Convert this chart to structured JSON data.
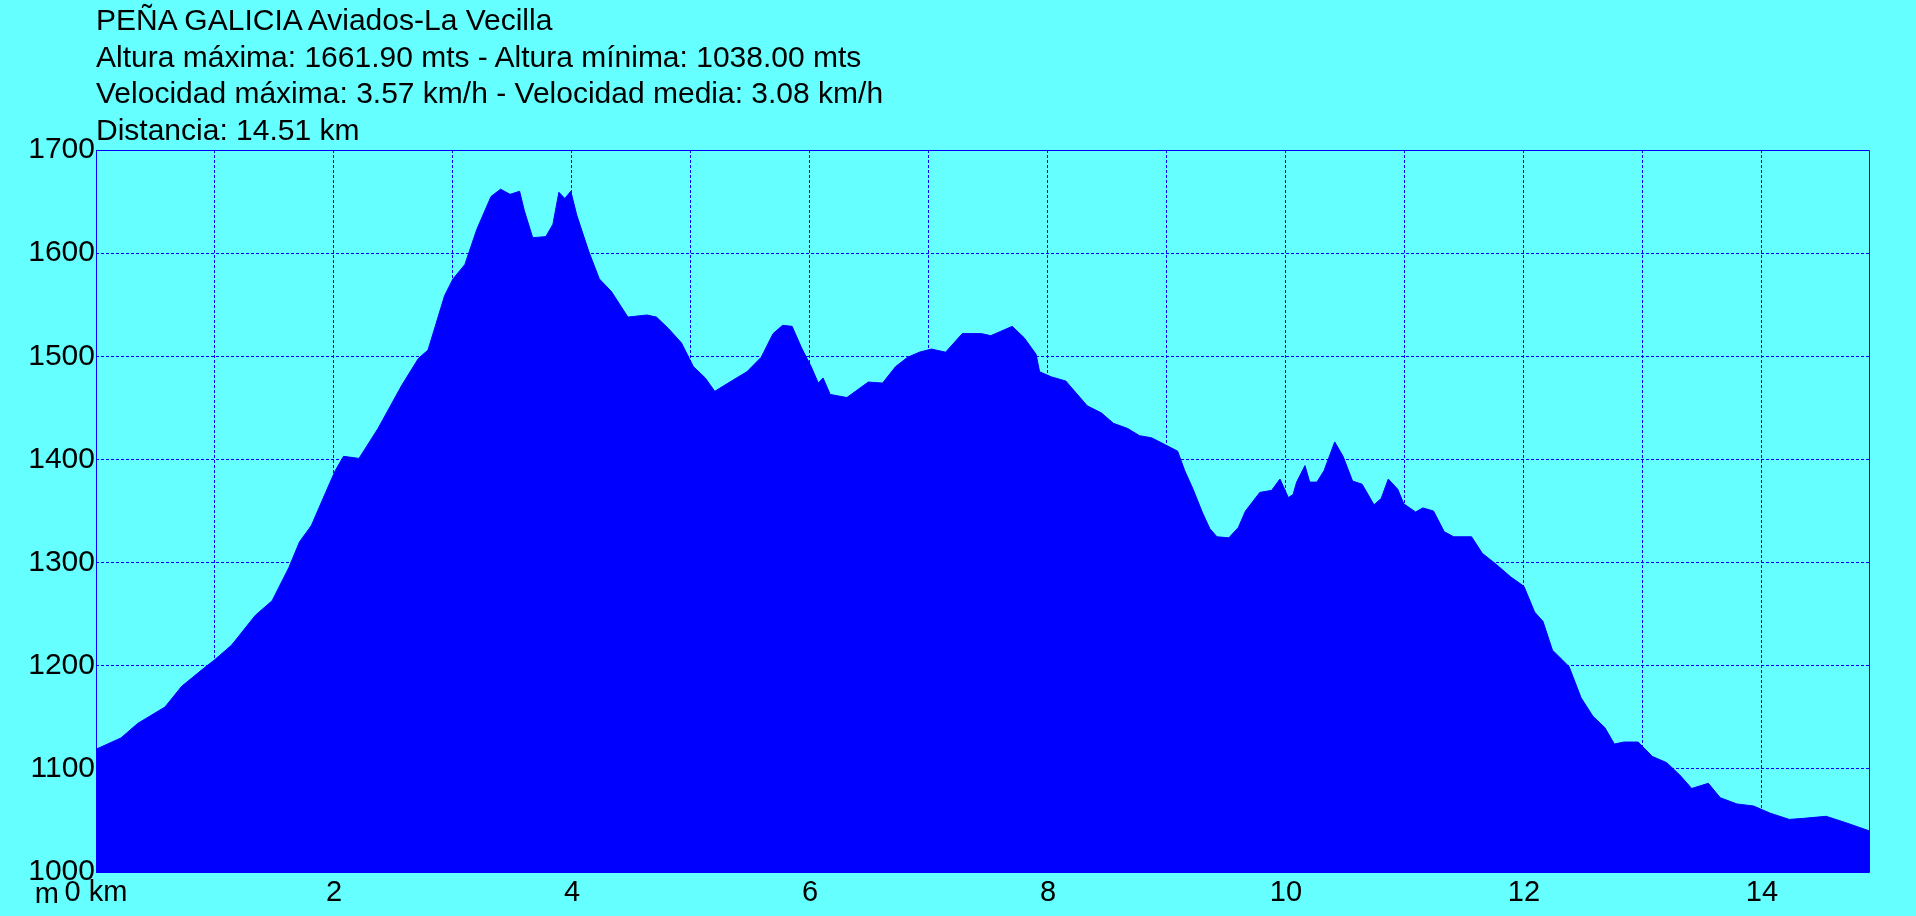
{
  "chart_data": {
    "type": "area",
    "title": "PEÑA GALICIA Aviados-La Vecilla",
    "annotations": [
      "Altura máxima: 1661.90 mts - Altura mínima: 1038.00 mts",
      "Velocidad máxima: 3.57 km/h - Velocidad media: 3.08 km/h",
      "Distancia: 14.51 km"
    ],
    "ylabel": "m",
    "color": "#0000ff",
    "x": [
      0,
      0.21,
      0.35,
      0.58,
      0.72,
      0.9,
      1.0,
      1.14,
      1.34,
      1.48,
      1.62,
      1.71,
      1.81,
      1.93,
      2.01,
      2.08,
      2.21,
      2.37,
      2.57,
      2.71,
      2.79,
      2.93,
      3.0,
      3.1,
      3.2,
      3.32,
      3.4,
      3.48,
      3.56,
      3.6,
      3.67,
      3.78,
      3.84,
      3.89,
      3.94,
      3.99,
      4.04,
      4.14,
      4.23,
      4.33,
      4.47,
      4.63,
      4.71,
      4.81,
      4.92,
      5.02,
      5.12,
      5.2,
      5.34,
      5.47,
      5.59,
      5.69,
      5.77,
      5.85,
      5.93,
      6.01,
      6.07,
      6.11,
      6.17,
      6.31,
      6.49,
      6.61,
      6.72,
      6.82,
      6.92,
      7.02,
      7.14,
      7.28,
      7.44,
      7.52,
      7.6,
      7.7,
      7.8,
      7.9,
      7.93,
      8.03,
      8.15,
      8.27,
      8.33,
      8.45,
      8.55,
      8.67,
      8.77,
      8.87,
      8.99,
      9.09,
      9.15,
      9.22,
      9.3,
      9.36,
      9.42,
      9.52,
      9.6,
      9.66,
      9.78,
      9.88,
      9.95,
      10.02,
      10.06,
      10.09,
      10.16,
      10.2,
      10.26,
      10.32,
      10.41,
      10.48,
      10.56,
      10.64,
      10.74,
      10.8,
      10.86,
      10.94,
      10.99,
      11.09,
      11.15,
      11.24,
      11.33,
      11.41,
      11.56,
      11.65,
      11.77,
      11.89,
      12.0,
      12.09,
      12.16,
      12.24,
      12.32,
      12.38,
      12.48,
      12.58,
      12.68,
      12.76,
      12.84,
      12.96,
      13.08,
      13.2,
      13.31,
      13.41,
      13.55,
      13.65,
      13.79,
      13.93,
      14.07,
      14.23,
      14.35,
      14.54,
      14.7,
      14.9
    ],
    "values": [
      1119,
      1130,
      1144,
      1160,
      1180,
      1197,
      1206,
      1220,
      1249,
      1263,
      1295,
      1320,
      1336,
      1368,
      1389,
      1403,
      1401,
      1430,
      1472,
      1498,
      1506,
      1559,
      1575,
      1589,
      1623,
      1655,
      1662,
      1657,
      1660,
      1641,
      1615,
      1616,
      1628,
      1659,
      1653,
      1660,
      1637,
      1602,
      1575,
      1563,
      1538,
      1540,
      1538,
      1527,
      1513,
      1490,
      1479,
      1466,
      1476,
      1485,
      1499,
      1522,
      1530,
      1529,
      1508,
      1490,
      1474,
      1479,
      1463,
      1460,
      1475,
      1474,
      1490,
      1499,
      1504,
      1507,
      1504,
      1522,
      1522,
      1520,
      1524,
      1529,
      1518,
      1502,
      1485,
      1480,
      1476,
      1460,
      1452,
      1445,
      1435,
      1430,
      1423,
      1421,
      1414,
      1408,
      1389,
      1371,
      1348,
      1333,
      1325,
      1324,
      1334,
      1350,
      1368,
      1370,
      1381,
      1363,
      1366,
      1378,
      1394,
      1378,
      1378,
      1389,
      1417,
      1403,
      1379,
      1376,
      1356,
      1362,
      1381,
      1371,
      1357,
      1349,
      1353,
      1350,
      1330,
      1325,
      1325,
      1309,
      1298,
      1286,
      1277,
      1252,
      1243,
      1215,
      1206,
      1199,
      1169,
      1151,
      1140,
      1124,
      1126,
      1126,
      1112,
      1106,
      1094,
      1081,
      1086,
      1072,
      1066,
      1064,
      1057,
      1051,
      1052,
      1054,
      1048,
      1040
    ],
    "xlim": [
      0,
      14.9
    ],
    "xticks": [
      {
        "value": 0,
        "label": "0 km"
      },
      {
        "value": 1,
        "label": null
      },
      2,
      {
        "value": 3,
        "label": null
      },
      4,
      {
        "value": 5,
        "label": null
      },
      6,
      {
        "value": 7,
        "label": null
      },
      8,
      {
        "value": 9,
        "label": null
      },
      10,
      {
        "value": 11,
        "label": null
      },
      12,
      {
        "value": 13,
        "label": null
      },
      14
    ],
    "ylim": [
      1000,
      1700
    ],
    "yticks": [
      1000,
      1100,
      1200,
      1300,
      1400,
      1500,
      1600,
      1700
    ],
    "grid": true
  }
}
